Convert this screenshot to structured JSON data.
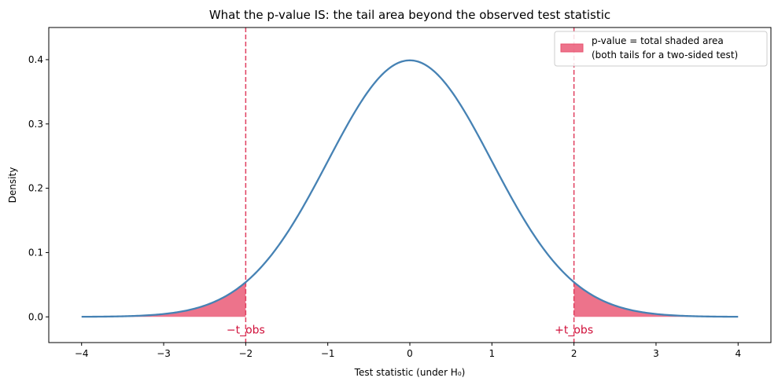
{
  "chart_data": {
    "type": "area",
    "title": "What the p-value IS: the tail area beyond the observed test statistic",
    "xlabel": "Test statistic (under H₀)",
    "ylabel": "Density",
    "xlim": [
      -4.4,
      4.4
    ],
    "ylim": [
      -0.04,
      0.45
    ],
    "xticks": [
      -4,
      -3,
      -2,
      -1,
      0,
      1,
      2,
      3,
      4
    ],
    "xtick_labels": [
      "−4",
      "−3",
      "−2",
      "−1",
      "0",
      "1",
      "2",
      "3",
      "4"
    ],
    "yticks": [
      0.0,
      0.1,
      0.2,
      0.3,
      0.4
    ],
    "ytick_labels": [
      "0.0",
      "0.1",
      "0.2",
      "0.3",
      "0.4"
    ],
    "grid": false,
    "series": [
      {
        "kind": "standard-normal-density",
        "mean": 0,
        "sd": 1,
        "x_range": [
          -4,
          4
        ],
        "color": "#4682b4"
      }
    ],
    "observed_statistic": 2.0,
    "shaded_tails": {
      "regions": [
        [
          -4,
          -2
        ],
        [
          2,
          4
        ]
      ],
      "color": "#e8506e",
      "legend_label_line1": "p-value = total shaded area",
      "legend_label_line2": "(both tails for a two-sided test)"
    },
    "reference_lines": [
      {
        "x": -2,
        "label": "−t_obs",
        "color": "#e04060"
      },
      {
        "x": 2,
        "label": "+t_obs",
        "color": "#e04060"
      }
    ],
    "annotation_color": "#d0103a",
    "legend_placement": "top-right"
  }
}
